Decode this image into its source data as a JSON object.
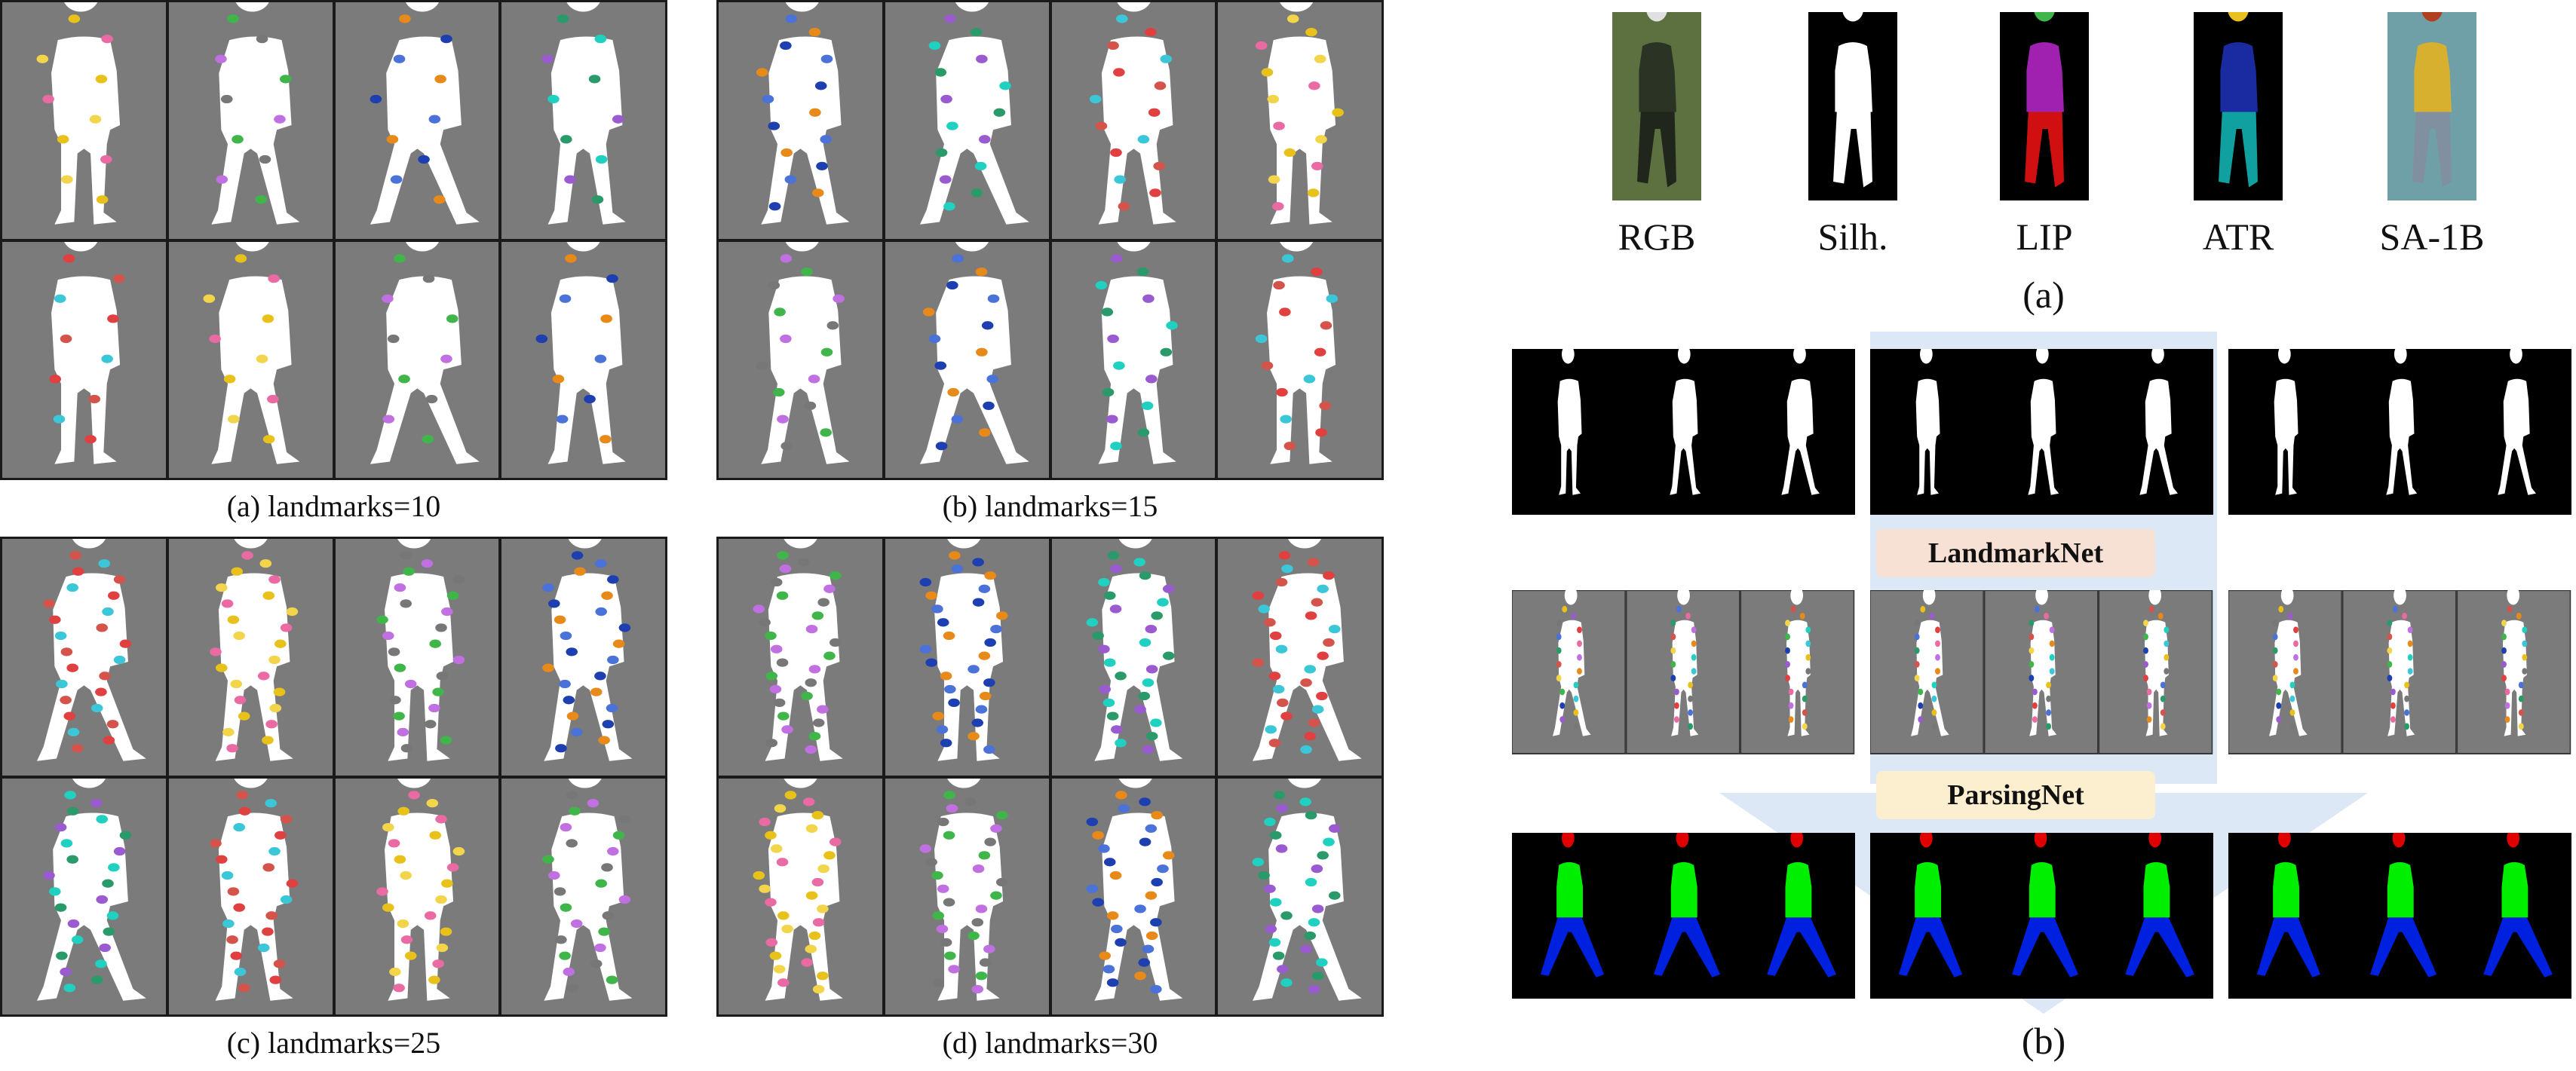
{
  "left_panels": [
    {
      "caption": "(a) landmarks=10",
      "landmarks": 10
    },
    {
      "caption": "(b) landmarks=15",
      "landmarks": 15
    },
    {
      "caption": "(c) landmarks=25",
      "landmarks": 25
    },
    {
      "caption": "(d) landmarks=30",
      "landmarks": 30
    }
  ],
  "figure_a": {
    "items": [
      {
        "label": "RGB"
      },
      {
        "label": "Silh."
      },
      {
        "label": "LIP"
      },
      {
        "label": "ATR"
      },
      {
        "label": "SA-1B"
      }
    ],
    "caption": "(a)"
  },
  "figure_b": {
    "landmark_net": "LandmarkNet",
    "parsing_net": "ParsingNet",
    "caption": "(b)"
  },
  "colors": {
    "background_gray": "#7b7b7b",
    "silhouette": "#ffffff",
    "arrow": "#dce8f5",
    "head": "#e00000",
    "torso": "#00ee00",
    "legs": "#0020e0"
  }
}
